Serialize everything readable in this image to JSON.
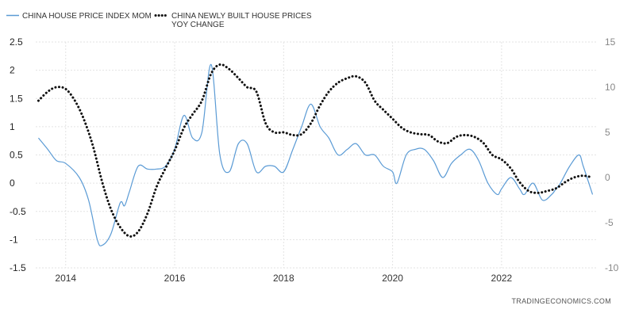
{
  "chart_data": {
    "type": "line",
    "legend_position": "top-left",
    "grid": true,
    "series": [
      {
        "name": "CHINA HOUSE PRICE INDEX MOM",
        "axis": "left",
        "color": "#5b9bd5",
        "style": "solid",
        "points": [
          [
            2013.5,
            0.8
          ],
          [
            2013.67,
            0.6
          ],
          [
            2013.83,
            0.4
          ],
          [
            2014.0,
            0.35
          ],
          [
            2014.25,
            0.1
          ],
          [
            2014.42,
            -0.3
          ],
          [
            2014.58,
            -1.0
          ],
          [
            2014.67,
            -1.1
          ],
          [
            2014.83,
            -0.9
          ],
          [
            2015.0,
            -0.35
          ],
          [
            2015.08,
            -0.4
          ],
          [
            2015.17,
            -0.15
          ],
          [
            2015.33,
            0.3
          ],
          [
            2015.5,
            0.25
          ],
          [
            2015.67,
            0.25
          ],
          [
            2015.83,
            0.3
          ],
          [
            2016.0,
            0.6
          ],
          [
            2016.17,
            1.2
          ],
          [
            2016.33,
            0.8
          ],
          [
            2016.5,
            0.9
          ],
          [
            2016.67,
            2.1
          ],
          [
            2016.83,
            0.5
          ],
          [
            2017.0,
            0.2
          ],
          [
            2017.17,
            0.7
          ],
          [
            2017.33,
            0.7
          ],
          [
            2017.5,
            0.2
          ],
          [
            2017.67,
            0.3
          ],
          [
            2017.83,
            0.3
          ],
          [
            2018.0,
            0.2
          ],
          [
            2018.17,
            0.6
          ],
          [
            2018.33,
            1.0
          ],
          [
            2018.5,
            1.4
          ],
          [
            2018.67,
            1.0
          ],
          [
            2018.83,
            0.8
          ],
          [
            2019.0,
            0.5
          ],
          [
            2019.17,
            0.6
          ],
          [
            2019.33,
            0.7
          ],
          [
            2019.5,
            0.5
          ],
          [
            2019.67,
            0.5
          ],
          [
            2019.83,
            0.3
          ],
          [
            2020.0,
            0.2
          ],
          [
            2020.08,
            0.0
          ],
          [
            2020.25,
            0.5
          ],
          [
            2020.42,
            0.6
          ],
          [
            2020.58,
            0.6
          ],
          [
            2020.75,
            0.4
          ],
          [
            2020.92,
            0.1
          ],
          [
            2021.08,
            0.35
          ],
          [
            2021.25,
            0.5
          ],
          [
            2021.42,
            0.6
          ],
          [
            2021.58,
            0.4
          ],
          [
            2021.75,
            0.0
          ],
          [
            2021.92,
            -0.2
          ],
          [
            2022.0,
            -0.1
          ],
          [
            2022.17,
            0.1
          ],
          [
            2022.33,
            -0.1
          ],
          [
            2022.42,
            -0.2
          ],
          [
            2022.58,
            0.0
          ],
          [
            2022.75,
            -0.3
          ],
          [
            2022.92,
            -0.2
          ],
          [
            2023.0,
            -0.1
          ],
          [
            2023.08,
            0.0
          ],
          [
            2023.25,
            0.3
          ],
          [
            2023.42,
            0.5
          ],
          [
            2023.5,
            0.3
          ],
          [
            2023.67,
            -0.2
          ]
        ]
      },
      {
        "name": "CHINA NEWLY BUILT HOUSE PRICES YOY CHANGE",
        "axis": "right",
        "color": "#111111",
        "style": "dotted",
        "points": [
          [
            2013.5,
            8.5
          ],
          [
            2013.67,
            9.5
          ],
          [
            2013.83,
            10.0
          ],
          [
            2014.0,
            9.8
          ],
          [
            2014.17,
            8.5
          ],
          [
            2014.33,
            6.5
          ],
          [
            2014.5,
            3.5
          ],
          [
            2014.67,
            -0.5
          ],
          [
            2014.83,
            -3.5
          ],
          [
            2015.0,
            -5.5
          ],
          [
            2015.17,
            -6.5
          ],
          [
            2015.33,
            -6.0
          ],
          [
            2015.5,
            -4.0
          ],
          [
            2015.67,
            -1.0
          ],
          [
            2015.83,
            1.0
          ],
          [
            2016.0,
            3.0
          ],
          [
            2016.17,
            5.5
          ],
          [
            2016.33,
            7.0
          ],
          [
            2016.5,
            8.5
          ],
          [
            2016.67,
            11.5
          ],
          [
            2016.83,
            12.5
          ],
          [
            2017.0,
            12.0
          ],
          [
            2017.17,
            11.0
          ],
          [
            2017.33,
            10.0
          ],
          [
            2017.5,
            9.5
          ],
          [
            2017.67,
            6.0
          ],
          [
            2017.83,
            5.0
          ],
          [
            2018.0,
            5.0
          ],
          [
            2018.17,
            4.7
          ],
          [
            2018.33,
            4.8
          ],
          [
            2018.5,
            6.0
          ],
          [
            2018.67,
            8.0
          ],
          [
            2018.83,
            9.5
          ],
          [
            2019.0,
            10.5
          ],
          [
            2019.17,
            11.0
          ],
          [
            2019.33,
            11.2
          ],
          [
            2019.5,
            10.5
          ],
          [
            2019.67,
            8.5
          ],
          [
            2019.83,
            7.5
          ],
          [
            2020.0,
            6.5
          ],
          [
            2020.17,
            5.5
          ],
          [
            2020.33,
            5.0
          ],
          [
            2020.5,
            4.8
          ],
          [
            2020.67,
            4.7
          ],
          [
            2020.83,
            4.0
          ],
          [
            2021.0,
            3.8
          ],
          [
            2021.17,
            4.5
          ],
          [
            2021.33,
            4.7
          ],
          [
            2021.5,
            4.5
          ],
          [
            2021.67,
            3.8
          ],
          [
            2021.83,
            2.5
          ],
          [
            2022.0,
            2.0
          ],
          [
            2022.17,
            1.0
          ],
          [
            2022.33,
            -0.5
          ],
          [
            2022.5,
            -1.5
          ],
          [
            2022.67,
            -1.7
          ],
          [
            2022.83,
            -1.5
          ],
          [
            2023.0,
            -1.2
          ],
          [
            2023.17,
            -0.5
          ],
          [
            2023.33,
            0.0
          ],
          [
            2023.5,
            0.2
          ],
          [
            2023.67,
            0.0
          ]
        ]
      }
    ],
    "x_ticks": [
      "2014",
      "2016",
      "2018",
      "2020",
      "2022"
    ],
    "x_range": [
      2013.45,
      2023.75
    ],
    "y_left": {
      "range": [
        -1.5,
        2.5
      ],
      "ticks": [
        "2.5",
        "2",
        "1.5",
        "1",
        "0.5",
        "0",
        "-0.5",
        "-1",
        "-1.5"
      ]
    },
    "y_right": {
      "range": [
        -10,
        15
      ],
      "ticks": [
        "15",
        "10",
        "5",
        "0",
        "-5",
        "-10"
      ]
    },
    "legend": [
      {
        "lines": [
          "CHINA HOUSE PRICE INDEX MOM"
        ],
        "style": "solid",
        "color": "#5b9bd5"
      },
      {
        "lines": [
          "CHINA NEWLY BUILT HOUSE PRICES",
          "YOY CHANGE"
        ],
        "style": "dotted",
        "color": "#111111"
      }
    ],
    "source": "TRADINGECONOMICS.COM",
    "colors": {
      "grid": "#e3e3e3",
      "left_ticks": "#222222",
      "right_ticks": "#888888"
    }
  }
}
